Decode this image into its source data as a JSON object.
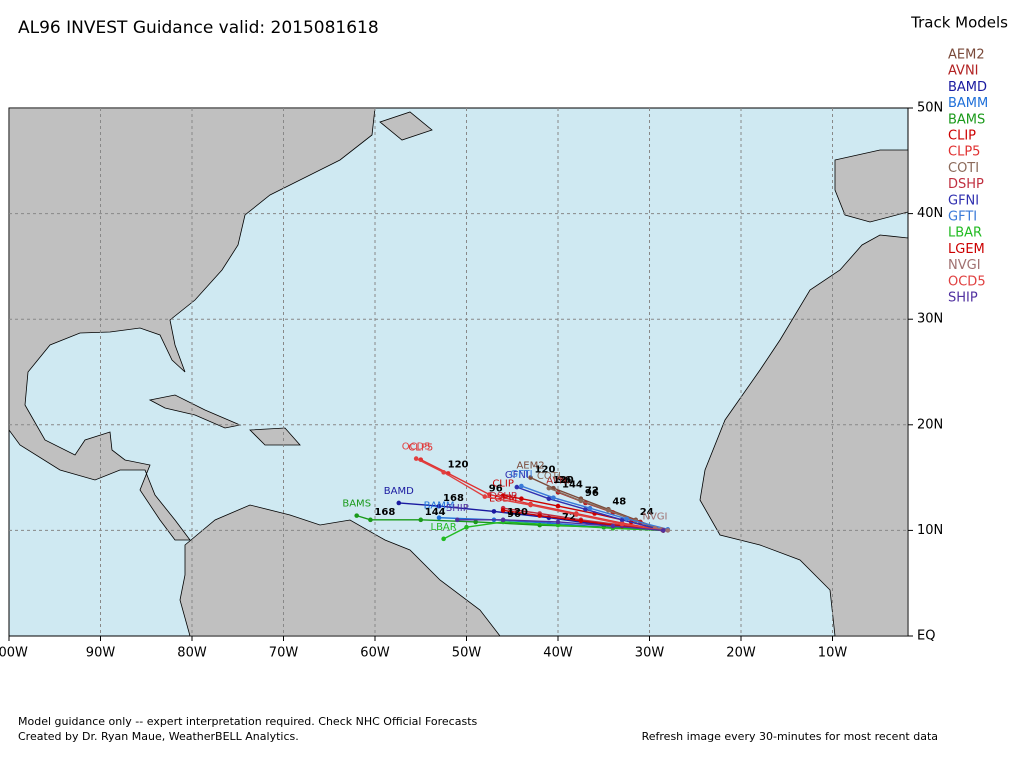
{
  "header": {
    "title": "AL96 INVEST Guidance valid: 2015081618"
  },
  "legend": {
    "title": "Track Models",
    "models": [
      {
        "name": "AEM2",
        "color": "#7a4a3a"
      },
      {
        "name": "AVNI",
        "color": "#b22222"
      },
      {
        "name": "BAMD",
        "color": "#1a1aa0"
      },
      {
        "name": "BAMM",
        "color": "#1e6fd9"
      },
      {
        "name": "BAMS",
        "color": "#1a9a1a"
      },
      {
        "name": "CLIP",
        "color": "#cc0000"
      },
      {
        "name": "CLP5",
        "color": "#e03030"
      },
      {
        "name": "COTI",
        "color": "#8b6a5a"
      },
      {
        "name": "DSHP",
        "color": "#c03040"
      },
      {
        "name": "GFNI",
        "color": "#3030b0"
      },
      {
        "name": "GFTI",
        "color": "#3a7ad8"
      },
      {
        "name": "LBAR",
        "color": "#22bb22"
      },
      {
        "name": "LGEM",
        "color": "#cc0000"
      },
      {
        "name": "NVGI",
        "color": "#a07070"
      },
      {
        "name": "OCD5",
        "color": "#e04040"
      },
      {
        "name": "SHIP",
        "color": "#5030a0"
      }
    ]
  },
  "map": {
    "xlim": [
      -100,
      -1.75
    ],
    "ylim": [
      0,
      50
    ],
    "xticks": [
      {
        "value": -100,
        "label": "100W"
      },
      {
        "value": -90,
        "label": "90W"
      },
      {
        "value": -80,
        "label": "80W"
      },
      {
        "value": -70,
        "label": "70W"
      },
      {
        "value": -60,
        "label": "60W"
      },
      {
        "value": -50,
        "label": "50W"
      },
      {
        "value": -40,
        "label": "40W"
      },
      {
        "value": -30,
        "label": "30W"
      },
      {
        "value": -20,
        "label": "20W"
      },
      {
        "value": -10,
        "label": "10W"
      }
    ],
    "yticks": [
      {
        "value": 0,
        "label": "EQ"
      },
      {
        "value": 10,
        "label": "10N"
      },
      {
        "value": 20,
        "label": "20N"
      },
      {
        "value": 30,
        "label": "30N"
      },
      {
        "value": 40,
        "label": "40N"
      },
      {
        "value": 50,
        "label": "50N"
      }
    ],
    "tracks": [
      {
        "model": 0,
        "lon": [
          -28.5,
          -31.5,
          -34.5,
          -37.5,
          -40.5,
          -43
        ],
        "lat": [
          10,
          11,
          12,
          13,
          14,
          15
        ],
        "hours": [
          null,
          24,
          48,
          72,
          96,
          120
        ]
      },
      {
        "model": 1,
        "lon": [
          -28.5,
          -31,
          -34,
          -37,
          -40
        ],
        "lat": [
          10,
          10.8,
          11.7,
          12.6,
          13.6
        ],
        "hours": [
          null,
          null,
          null,
          null,
          144
        ]
      },
      {
        "model": 2,
        "lon": [
          -28.5,
          -35,
          -41,
          -47,
          -53,
          -57.4
        ],
        "lat": [
          10,
          10.5,
          11.2,
          11.8,
          12.3,
          12.6
        ],
        "hours": [
          null,
          null,
          null,
          null,
          168,
          null
        ]
      },
      {
        "model": 3,
        "lon": [
          -28.5,
          -35,
          -41,
          -47,
          -53
        ],
        "lat": [
          10,
          10.3,
          10.7,
          11,
          11.2
        ],
        "hours": [
          null,
          null,
          null,
          null,
          null
        ]
      },
      {
        "model": 4,
        "lon": [
          -28.5,
          -35,
          -42,
          -49,
          -55,
          -60.5,
          -62
        ],
        "lat": [
          10,
          10.3,
          10.5,
          10.8,
          11,
          11,
          11.4
        ],
        "hours": [
          null,
          null,
          null,
          null,
          144,
          168,
          null
        ]
      },
      {
        "model": 5,
        "lon": [
          -28.5,
          -32,
          -36,
          -40,
          -44,
          -46
        ],
        "lat": [
          10,
          10.8,
          11.6,
          12.3,
          13,
          13.3
        ],
        "hours": [
          null,
          null,
          null,
          null,
          null,
          null
        ]
      },
      {
        "model": 6,
        "lon": [
          -28.5,
          -33,
          -38,
          -43,
          -47.5,
          -52,
          -55
        ],
        "lat": [
          10,
          10.7,
          11.6,
          12.5,
          13.4,
          15.4,
          16.7
        ],
        "hours": [
          null,
          null,
          null,
          null,
          null,
          null,
          null
        ]
      },
      {
        "model": 7,
        "lon": [
          -28.5,
          -31.5,
          -34.5,
          -37.5,
          -41
        ],
        "lat": [
          10,
          10.9,
          11.9,
          12.8,
          14
        ],
        "hours": [
          null,
          null,
          null,
          96,
          120
        ]
      },
      {
        "model": 8,
        "lon": [
          -28.5,
          -33,
          -37.5,
          -42,
          -46
        ],
        "lat": [
          10,
          10.5,
          11,
          11.6,
          12.1
        ],
        "hours": [
          null,
          null,
          null,
          null,
          null
        ]
      },
      {
        "model": 9,
        "lon": [
          -28.5,
          -33,
          -37,
          -41,
          -44.5
        ],
        "lat": [
          10,
          11,
          12,
          13,
          14.1
        ],
        "hours": [
          null,
          null,
          null,
          null,
          null
        ]
      },
      {
        "model": 10,
        "lon": [
          -28,
          -32.5,
          -36.5,
          -40.5,
          -44
        ],
        "lat": [
          10.1,
          11.1,
          12.1,
          13.1,
          14.2
        ],
        "hours": [
          null,
          null,
          null,
          null,
          null
        ]
      },
      {
        "model": 11,
        "lon": [
          -28.5,
          -34,
          -40,
          -46,
          -50,
          -52.5
        ],
        "lat": [
          10,
          10.2,
          10.5,
          10.8,
          10.3,
          9.2
        ],
        "hours": [
          null,
          null,
          72,
          96,
          null,
          null
        ]
      },
      {
        "model": 12,
        "lon": [
          -28.5,
          -33,
          -37.5,
          -42,
          -46
        ],
        "lat": [
          10,
          10.4,
          10.9,
          11.4,
          11.9
        ],
        "hours": [
          null,
          null,
          null,
          null,
          null
        ]
      },
      {
        "model": 13,
        "lon": [
          -28,
          -28.7,
          -29.4
        ],
        "lat": [
          10,
          10.1,
          10.2
        ],
        "hours": [
          null,
          null,
          null
        ]
      },
      {
        "model": 14,
        "lon": [
          -28.5,
          -33,
          -38,
          -43,
          -48,
          -52.5,
          -55.5
        ],
        "lat": [
          10,
          10.6,
          11.5,
          12.4,
          13.2,
          15.5,
          16.8
        ],
        "hours": [
          null,
          null,
          null,
          null,
          96,
          120,
          null
        ]
      },
      {
        "model": 15,
        "lon": [
          -28.5,
          -34,
          -40,
          -46,
          -51
        ],
        "lat": [
          10,
          10.4,
          10.8,
          11,
          11
        ],
        "hours": [
          null,
          null,
          null,
          120,
          null
        ]
      }
    ]
  },
  "footer": {
    "note": "Model guidance only -- expert interpretation required.  Check NHC Official Forecasts",
    "credit": "Created by Dr. Ryan Maue, WeatherBELL Analytics.",
    "refresh": "Refresh image every 30-minutes for most recent data"
  }
}
